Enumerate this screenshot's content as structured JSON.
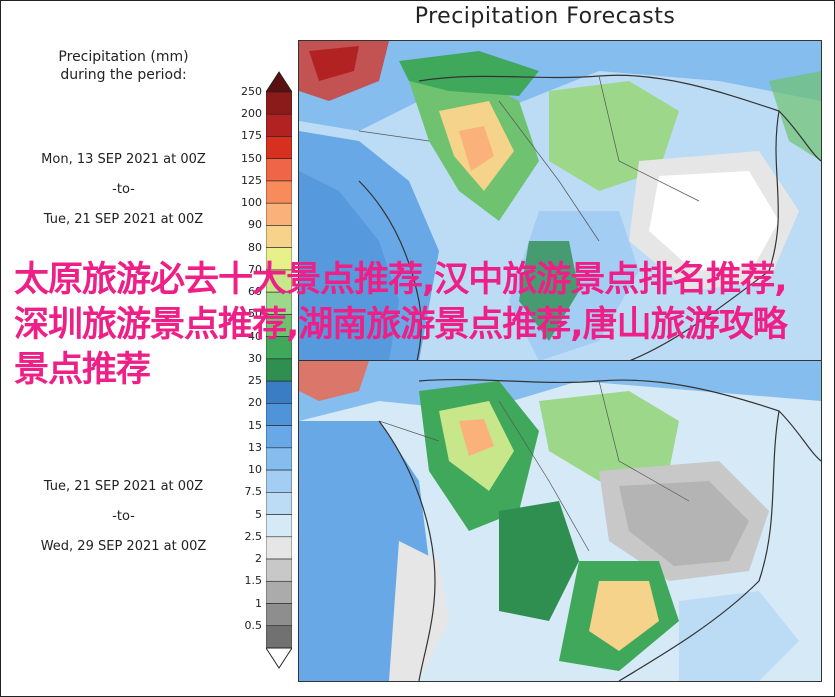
{
  "title": "Precipitation Forecasts",
  "legend": {
    "header_line1": "Precipitation (mm)",
    "header_line2": "during the period:",
    "ticks": [
      "250",
      "200",
      "175",
      "150",
      "125",
      "100",
      "90",
      "80",
      "70",
      "60",
      "50",
      "40",
      "30",
      "25",
      "20",
      "15",
      "13",
      "10",
      "7.5",
      "5",
      "2.5",
      "2",
      "1.5",
      "1",
      "0.5"
    ],
    "colors": [
      "#8b1a1a",
      "#b22222",
      "#d7301f",
      "#ef6548",
      "#f88b5a",
      "#fbb27a",
      "#f5d38a",
      "#e8f08a",
      "#c8e68a",
      "#9cd78a",
      "#6fc26f",
      "#3fa85a",
      "#2e8f50",
      "#3a7dc4",
      "#4f93d8",
      "#69a8e6",
      "#86bdef",
      "#a3cdf3",
      "#bcdcf5",
      "#d5e9f7",
      "#e6e6e6",
      "#c8c8c8",
      "#ababab",
      "#8e8e8e",
      "#717171"
    ]
  },
  "periods": [
    {
      "from": "Mon, 13 SEP 2021 at 00Z",
      "sep": "-to-",
      "to": "Tue, 21 SEP 2021 at 00Z"
    },
    {
      "from": "Tue, 21 SEP 2021 at 00Z",
      "sep": "-to-",
      "to": "Wed, 29 SEP 2021 at 00Z"
    }
  ],
  "overlay_text": "太原旅游必去十大景点推荐,汉中旅游景点排名推荐,深圳旅游景点推荐,湖南旅游景点推荐,唐山旅游攻略景点推荐"
}
